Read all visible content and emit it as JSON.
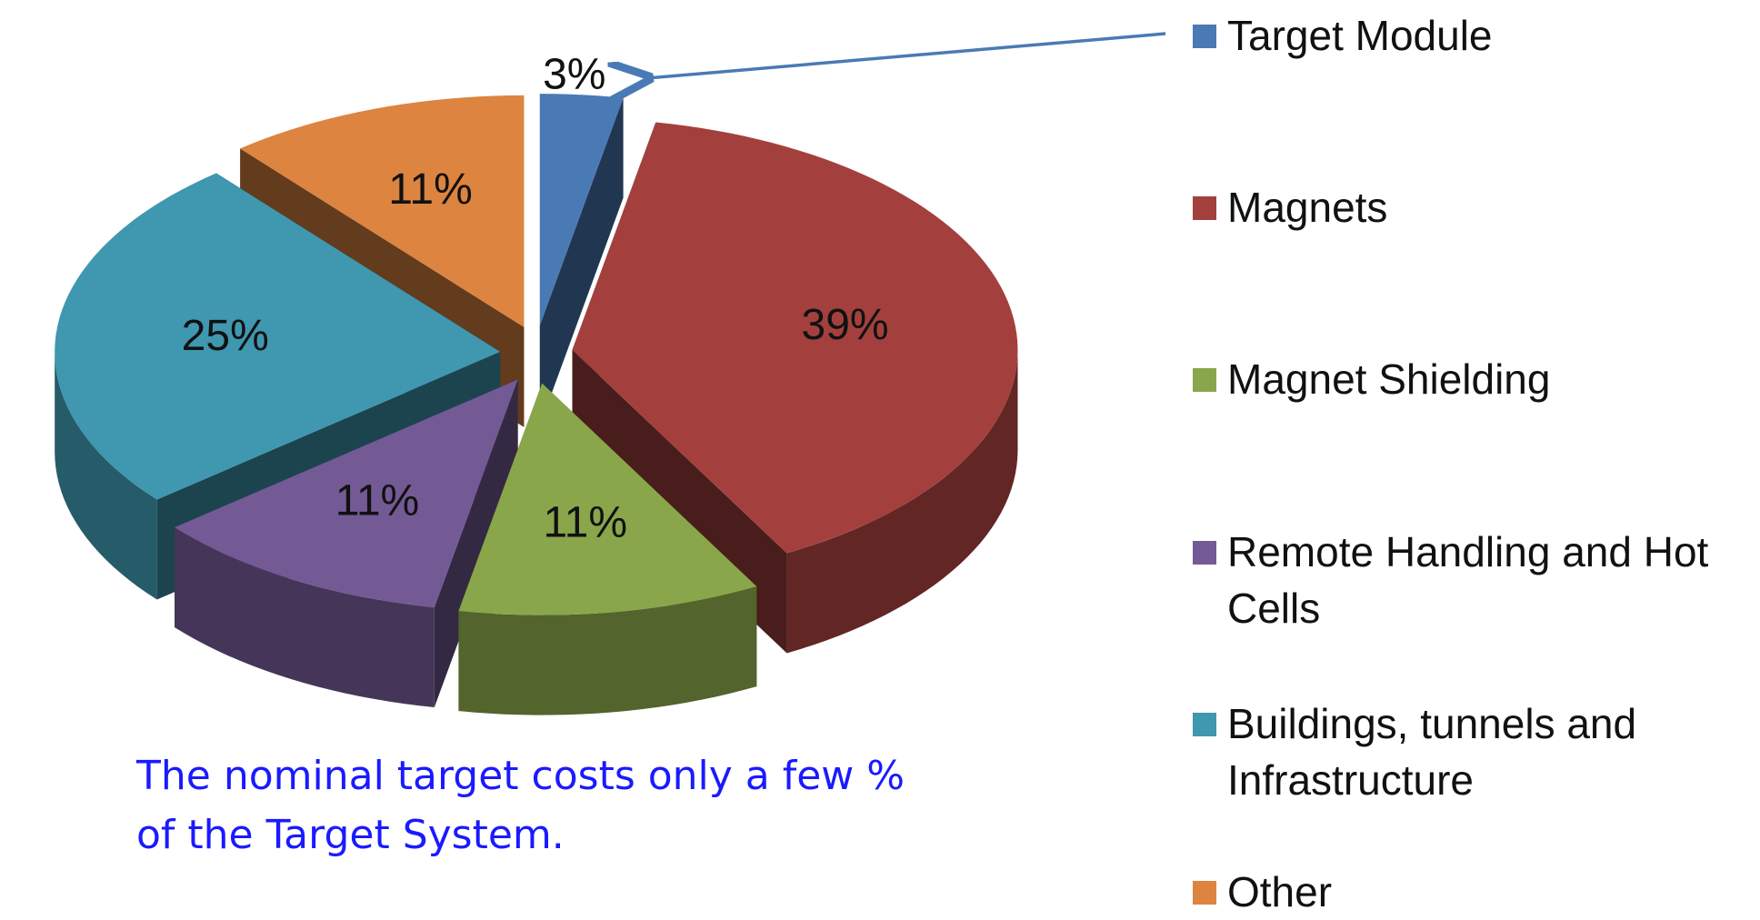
{
  "chart_data": {
    "type": "pie3d",
    "categories": [
      "Target Module",
      "Magnets",
      "Magnet Shielding",
      "Remote Handling and Hot Cells",
      "Buildings, tunnels and Infrastructure",
      "Other"
    ],
    "values": [
      3,
      39,
      11,
      11,
      25,
      11
    ],
    "value_labels": [
      "3%",
      "39%",
      "11%",
      "11%",
      "25%",
      "11%"
    ],
    "colors": [
      "#4a7ab5",
      "#a3403e",
      "#8aa64a",
      "#735a95",
      "#3f97b0",
      "#dd8440"
    ],
    "annotation": [
      "The nominal target costs only a few %",
      "of the Target System."
    ]
  }
}
